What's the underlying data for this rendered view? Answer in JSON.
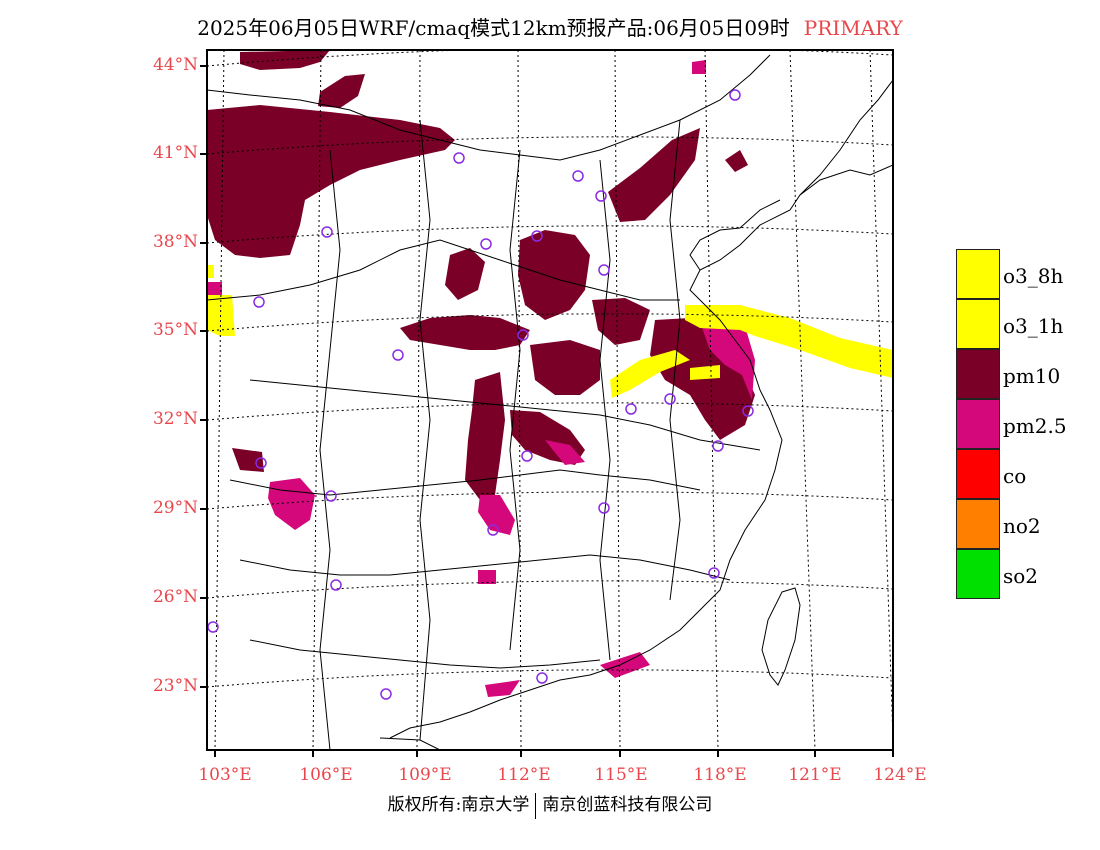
{
  "title": {
    "main": "2025年06月05日WRF/cmaq模式12km预报产品:06月05日09时",
    "status": "PRIMARY"
  },
  "lat_labels": [
    "44°N",
    "41°N",
    "38°N",
    "35°N",
    "32°N",
    "29°N",
    "26°N",
    "23°N"
  ],
  "lon_labels": [
    "103°E",
    "106°E",
    "109°E",
    "112°E",
    "115°E",
    "118°E",
    "121°E",
    "124°E"
  ],
  "legend": [
    {
      "label": "o3_8h",
      "color": "#ffff00"
    },
    {
      "label": "o3_1h",
      "color": "#ffff00"
    },
    {
      "label": "pm10",
      "color": "#7a0028"
    },
    {
      "label": "pm2.5",
      "color": "#d4087a"
    },
    {
      "label": "co",
      "color": "#ff0000"
    },
    {
      "label": "no2",
      "color": "#ff8000"
    },
    {
      "label": "so2",
      "color": "#00e000"
    }
  ],
  "footer": {
    "left": "版权所有:南京大学",
    "right": "南京创蓝科技有限公司"
  },
  "colors": {
    "label_red": "#e8474c",
    "pm10": "#7a0028",
    "pm25": "#d4087a",
    "o3": "#ffff00",
    "station": "#8a2be2"
  }
}
